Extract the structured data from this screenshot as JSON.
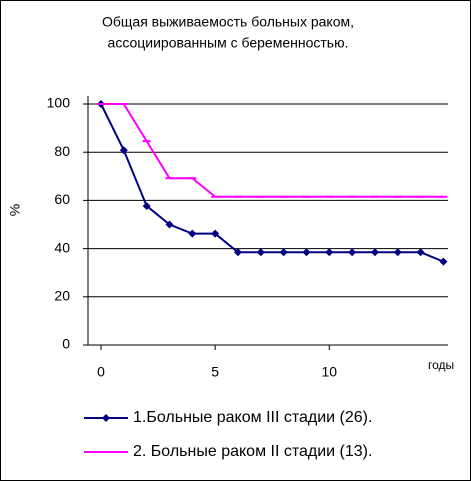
{
  "chart_data": {
    "type": "line",
    "title": [
      "Общая выживаемость больных раком,",
      "ассоциированным с беременностью."
    ],
    "y_label": "%",
    "x_label": "годы",
    "x": [
      0,
      1,
      2,
      3,
      4,
      5,
      6,
      7,
      8,
      9,
      10,
      11,
      12,
      13,
      14,
      15
    ],
    "series": [
      {
        "name": "1.Больные раком III стадии (26).",
        "color": "#000080",
        "marker": "diamond",
        "values": [
          100,
          80.8,
          57.7,
          50,
          46.2,
          46.2,
          38.5,
          38.5,
          38.5,
          38.5,
          38.5,
          38.5,
          38.5,
          38.5,
          38.5,
          34.6
        ]
      },
      {
        "name": "2. Больные раком II стадии (13).",
        "color": "#ff00ff",
        "marker": "dash",
        "values": [
          100,
          100,
          84.6,
          69.2,
          69.2,
          61.5,
          61.5,
          61.5,
          61.5,
          61.5,
          61.5,
          61.5,
          61.5,
          61.5,
          61.5,
          61.5
        ]
      }
    ],
    "xlim": [
      -0.57,
      15.2
    ],
    "xticks": [
      0,
      5,
      10
    ],
    "ylim": [
      0,
      100
    ],
    "yticks": [
      0,
      20,
      40,
      60,
      80,
      100
    ],
    "grid": true
  }
}
